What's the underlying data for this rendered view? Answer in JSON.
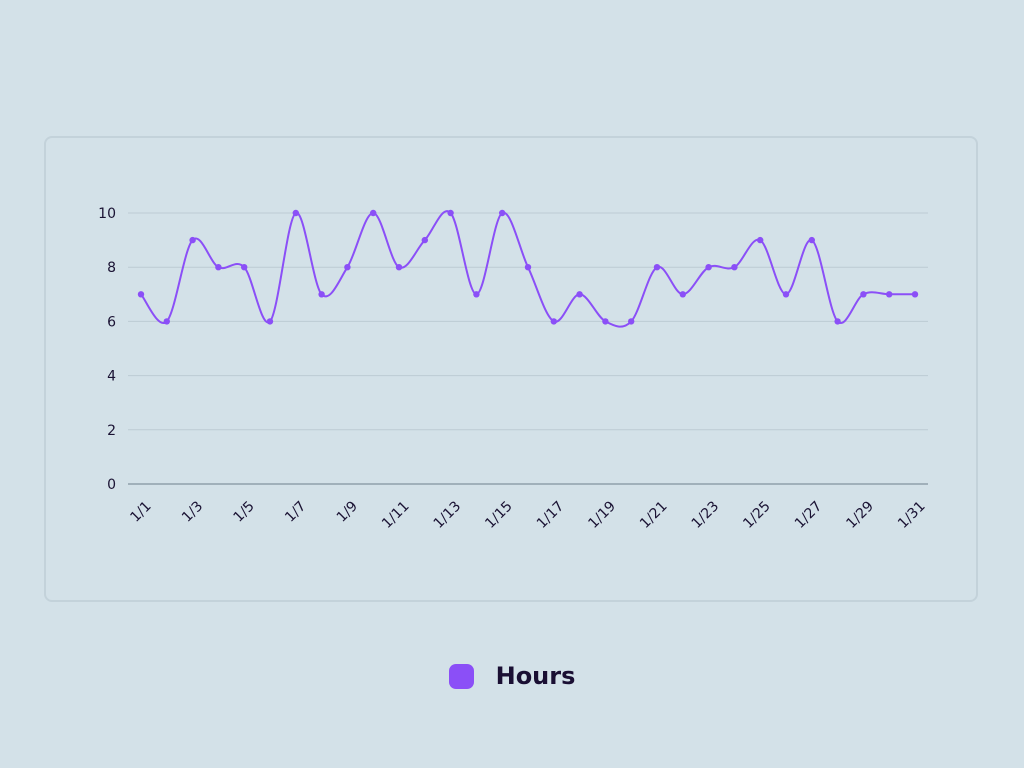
{
  "chart_data": {
    "type": "line",
    "smooth": true,
    "x": [
      "1/1",
      "1/2",
      "1/3",
      "1/4",
      "1/5",
      "1/6",
      "1/7",
      "1/8",
      "1/9",
      "1/10",
      "1/11",
      "1/12",
      "1/13",
      "1/14",
      "1/15",
      "1/16",
      "1/17",
      "1/18",
      "1/19",
      "1/20",
      "1/21",
      "1/22",
      "1/23",
      "1/24",
      "1/25",
      "1/26",
      "1/27",
      "1/28",
      "1/29",
      "1/30",
      "1/31"
    ],
    "x_tick_labels": [
      "1/1",
      "1/3",
      "1/5",
      "1/7",
      "1/9",
      "1/11",
      "1/13",
      "1/15",
      "1/17",
      "1/19",
      "1/21",
      "1/23",
      "1/25",
      "1/27",
      "1/29",
      "1/31"
    ],
    "series": [
      {
        "name": "Hours",
        "color": "#8b4ff7",
        "values": [
          7,
          6,
          9,
          8,
          8,
          6,
          10,
          7,
          8,
          10,
          8,
          9,
          10,
          7,
          10,
          8,
          6,
          7,
          6,
          6,
          8,
          7,
          8,
          8,
          9,
          7,
          9,
          6,
          7,
          7,
          7
        ]
      }
    ],
    "ylim": [
      0,
      10
    ],
    "y_ticks": [
      "0",
      "2",
      "4",
      "6",
      "8",
      "10"
    ],
    "grid": true,
    "legend_position": "bottom-center",
    "title": "",
    "xlabel": "",
    "ylabel": ""
  },
  "colors": {
    "background": "#d3e1e8",
    "grid": "#bccbd3",
    "axis": "#8fa0ab",
    "text": "#1a1233"
  }
}
